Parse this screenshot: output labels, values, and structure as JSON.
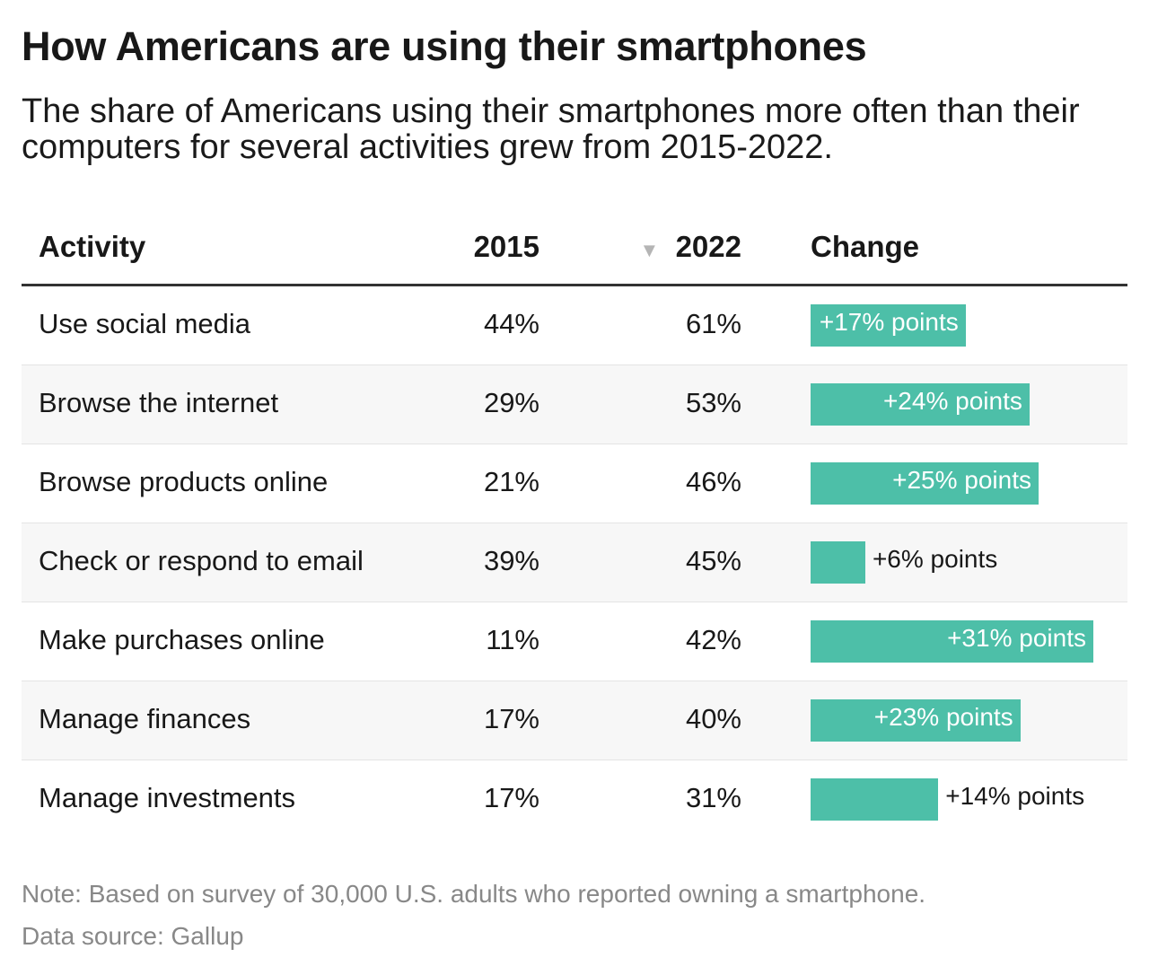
{
  "title": "How Americans are using their smartphones",
  "subtitle": "The share of Americans using their smartphones more often than their computers for several activities grew from 2015-2022.",
  "chart_data": {
    "type": "table",
    "columns": [
      "Activity",
      "2015",
      "2022",
      "Change"
    ],
    "sorted_by": "2022",
    "sort_direction": "descending",
    "bar_color": "#4dbfa8",
    "rows": [
      {
        "activity": "Use social media",
        "y2015": "44%",
        "y2022": "61%",
        "change": 17,
        "change_label": "+17% points"
      },
      {
        "activity": "Browse the internet",
        "y2015": "29%",
        "y2022": "53%",
        "change": 24,
        "change_label": "+24% points"
      },
      {
        "activity": "Browse products online",
        "y2015": "21%",
        "y2022": "46%",
        "change": 25,
        "change_label": "+25% points"
      },
      {
        "activity": "Check or respond to email",
        "y2015": "39%",
        "y2022": "45%",
        "change": 6,
        "change_label": "+6% points"
      },
      {
        "activity": "Make purchases online",
        "y2015": "11%",
        "y2022": "42%",
        "change": 31,
        "change_label": "+31% points"
      },
      {
        "activity": "Manage finances",
        "y2015": "17%",
        "y2022": "40%",
        "change": 23,
        "change_label": "+23% points"
      },
      {
        "activity": "Manage investments",
        "y2015": "17%",
        "y2022": "31%",
        "change": 14,
        "change_label": "+14% points"
      }
    ]
  },
  "sort_icon": "triangle-down-icon",
  "note": "Note: Based on survey of 30,000 U.S. adults who reported owning a smartphone.",
  "source": "Data source: Gallup"
}
